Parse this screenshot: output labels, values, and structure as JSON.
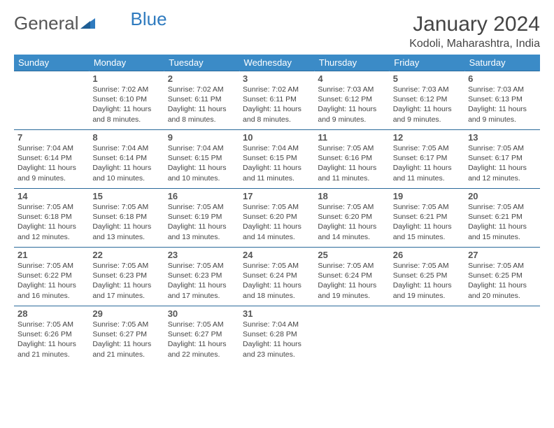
{
  "brand": {
    "text1": "General",
    "text2": "Blue"
  },
  "title": "January 2024",
  "location": "Kodoli, Maharashtra, India",
  "colors": {
    "header_bg": "#3b8bc7",
    "header_text": "#ffffff",
    "row_border": "#2a6a9a",
    "text": "#444444",
    "logo_gray": "#555555",
    "logo_blue": "#2f7bbf",
    "background": "#ffffff"
  },
  "typography": {
    "month_title_size_pt": 22,
    "location_size_pt": 12,
    "dayname_size_pt": 10,
    "daynum_size_pt": 10,
    "cell_text_size_pt": 8
  },
  "dayNames": [
    "Sunday",
    "Monday",
    "Tuesday",
    "Wednesday",
    "Thursday",
    "Friday",
    "Saturday"
  ],
  "weeks": [
    [
      null,
      {
        "n": "1",
        "sr": "7:02 AM",
        "ss": "6:10 PM",
        "dl": "11 hours and 8 minutes."
      },
      {
        "n": "2",
        "sr": "7:02 AM",
        "ss": "6:11 PM",
        "dl": "11 hours and 8 minutes."
      },
      {
        "n": "3",
        "sr": "7:02 AM",
        "ss": "6:11 PM",
        "dl": "11 hours and 8 minutes."
      },
      {
        "n": "4",
        "sr": "7:03 AM",
        "ss": "6:12 PM",
        "dl": "11 hours and 9 minutes."
      },
      {
        "n": "5",
        "sr": "7:03 AM",
        "ss": "6:12 PM",
        "dl": "11 hours and 9 minutes."
      },
      {
        "n": "6",
        "sr": "7:03 AM",
        "ss": "6:13 PM",
        "dl": "11 hours and 9 minutes."
      }
    ],
    [
      {
        "n": "7",
        "sr": "7:04 AM",
        "ss": "6:14 PM",
        "dl": "11 hours and 9 minutes."
      },
      {
        "n": "8",
        "sr": "7:04 AM",
        "ss": "6:14 PM",
        "dl": "11 hours and 10 minutes."
      },
      {
        "n": "9",
        "sr": "7:04 AM",
        "ss": "6:15 PM",
        "dl": "11 hours and 10 minutes."
      },
      {
        "n": "10",
        "sr": "7:04 AM",
        "ss": "6:15 PM",
        "dl": "11 hours and 11 minutes."
      },
      {
        "n": "11",
        "sr": "7:05 AM",
        "ss": "6:16 PM",
        "dl": "11 hours and 11 minutes."
      },
      {
        "n": "12",
        "sr": "7:05 AM",
        "ss": "6:17 PM",
        "dl": "11 hours and 11 minutes."
      },
      {
        "n": "13",
        "sr": "7:05 AM",
        "ss": "6:17 PM",
        "dl": "11 hours and 12 minutes."
      }
    ],
    [
      {
        "n": "14",
        "sr": "7:05 AM",
        "ss": "6:18 PM",
        "dl": "11 hours and 12 minutes."
      },
      {
        "n": "15",
        "sr": "7:05 AM",
        "ss": "6:18 PM",
        "dl": "11 hours and 13 minutes."
      },
      {
        "n": "16",
        "sr": "7:05 AM",
        "ss": "6:19 PM",
        "dl": "11 hours and 13 minutes."
      },
      {
        "n": "17",
        "sr": "7:05 AM",
        "ss": "6:20 PM",
        "dl": "11 hours and 14 minutes."
      },
      {
        "n": "18",
        "sr": "7:05 AM",
        "ss": "6:20 PM",
        "dl": "11 hours and 14 minutes."
      },
      {
        "n": "19",
        "sr": "7:05 AM",
        "ss": "6:21 PM",
        "dl": "11 hours and 15 minutes."
      },
      {
        "n": "20",
        "sr": "7:05 AM",
        "ss": "6:21 PM",
        "dl": "11 hours and 15 minutes."
      }
    ],
    [
      {
        "n": "21",
        "sr": "7:05 AM",
        "ss": "6:22 PM",
        "dl": "11 hours and 16 minutes."
      },
      {
        "n": "22",
        "sr": "7:05 AM",
        "ss": "6:23 PM",
        "dl": "11 hours and 17 minutes."
      },
      {
        "n": "23",
        "sr": "7:05 AM",
        "ss": "6:23 PM",
        "dl": "11 hours and 17 minutes."
      },
      {
        "n": "24",
        "sr": "7:05 AM",
        "ss": "6:24 PM",
        "dl": "11 hours and 18 minutes."
      },
      {
        "n": "25",
        "sr": "7:05 AM",
        "ss": "6:24 PM",
        "dl": "11 hours and 19 minutes."
      },
      {
        "n": "26",
        "sr": "7:05 AM",
        "ss": "6:25 PM",
        "dl": "11 hours and 19 minutes."
      },
      {
        "n": "27",
        "sr": "7:05 AM",
        "ss": "6:25 PM",
        "dl": "11 hours and 20 minutes."
      }
    ],
    [
      {
        "n": "28",
        "sr": "7:05 AM",
        "ss": "6:26 PM",
        "dl": "11 hours and 21 minutes."
      },
      {
        "n": "29",
        "sr": "7:05 AM",
        "ss": "6:27 PM",
        "dl": "11 hours and 21 minutes."
      },
      {
        "n": "30",
        "sr": "7:05 AM",
        "ss": "6:27 PM",
        "dl": "11 hours and 22 minutes."
      },
      {
        "n": "31",
        "sr": "7:04 AM",
        "ss": "6:28 PM",
        "dl": "11 hours and 23 minutes."
      },
      null,
      null,
      null
    ]
  ],
  "labels": {
    "sunrise_prefix": "Sunrise: ",
    "sunset_prefix": "Sunset: ",
    "daylight_prefix": "Daylight: "
  }
}
